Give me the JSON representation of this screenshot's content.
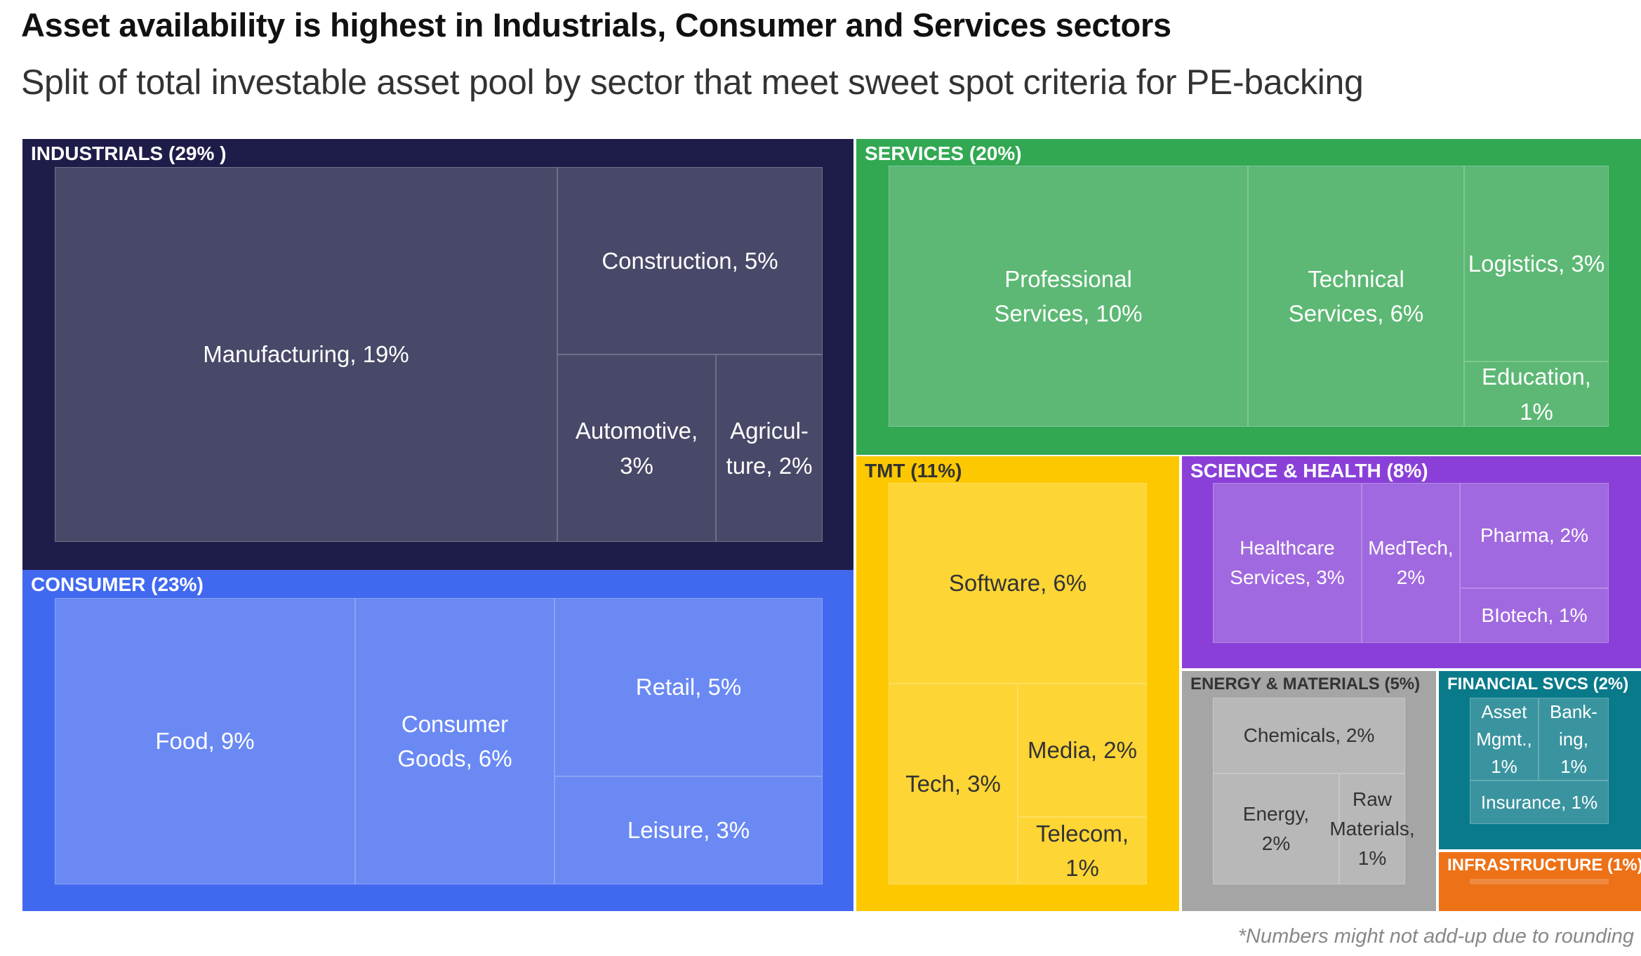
{
  "title": "Asset availability is highest in Industrials, Consumer and Services sectors",
  "subtitle": "Split of total investable asset pool by sector that meet sweet spot criteria for PE-backing",
  "footnote": "*Numbers might not add-up due to rounding",
  "chart_data": {
    "type": "treemap",
    "title": "Asset availability is highest in Industrials, Consumer and Services sectors",
    "subtitle": "Split of total investable asset pool by sector that meet sweet spot criteria for PE-backing",
    "unit": "% of total investable asset pool",
    "sectors": [
      {
        "id": "industrials",
        "label": "INDUSTRIALS (29% )",
        "value": 29,
        "color": "#1e1d49",
        "leaf_color": "#484868",
        "text_color": "#ffffff",
        "children": [
          {
            "id": "manufacturing",
            "label": "Manufacturing, 19%",
            "value": 19
          },
          {
            "id": "construction",
            "label": "Construction, 5%",
            "value": 5
          },
          {
            "id": "automotive",
            "label": "Automotive, 3%",
            "value": 3
          },
          {
            "id": "agriculture",
            "label": "Agricul-ture, 2%",
            "value": 2
          }
        ]
      },
      {
        "id": "consumer",
        "label": "CONSUMER (23%)",
        "value": 23,
        "color": "#4169ef",
        "leaf_color": "#6a89f3",
        "text_color": "#ffffff",
        "children": [
          {
            "id": "food",
            "label": "Food, 9%",
            "value": 9
          },
          {
            "id": "consumer-goods",
            "label": "Consumer Goods, 6%",
            "value": 6
          },
          {
            "id": "retail",
            "label": "Retail, 5%",
            "value": 5
          },
          {
            "id": "leisure",
            "label": "Leisure, 3%",
            "value": 3
          }
        ]
      },
      {
        "id": "services",
        "label": "SERVICES (20%)",
        "value": 20,
        "color": "#32a852",
        "leaf_color": "#5cb874",
        "text_color": "#ffffff",
        "children": [
          {
            "id": "professional-services",
            "label": "Professional Services, 10%",
            "value": 10
          },
          {
            "id": "technical-services",
            "label": "Technical Services, 6%",
            "value": 6
          },
          {
            "id": "logistics",
            "label": "Logistics, 3%",
            "value": 3
          },
          {
            "id": "education",
            "label": "Education, 1%",
            "value": 1
          }
        ]
      },
      {
        "id": "tmt",
        "label": "TMT (11%)",
        "value": 11,
        "color": "#fdc800",
        "leaf_color": "#fdd535",
        "text_color": "#333333",
        "children": [
          {
            "id": "software",
            "label": "Software, 6%",
            "value": 6
          },
          {
            "id": "tech",
            "label": "Tech, 3%",
            "value": 3
          },
          {
            "id": "media",
            "label": "Media, 2%",
            "value": 2
          },
          {
            "id": "telecom",
            "label": "Telecom, 1%",
            "value": 1
          }
        ]
      },
      {
        "id": "science-health",
        "label": "SCIENCE & HEALTH (8%)",
        "value": 8,
        "color": "#8a40d8",
        "leaf_color": "#a169df",
        "text_color": "#ffffff",
        "children": [
          {
            "id": "healthcare-services",
            "label": "Healthcare Services, 3%",
            "value": 3
          },
          {
            "id": "medtech",
            "label": "MedTech, 2%",
            "value": 2
          },
          {
            "id": "pharma",
            "label": "Pharma, 2%",
            "value": 2
          },
          {
            "id": "biotech",
            "label": "BIotech, 1%",
            "value": 1
          }
        ]
      },
      {
        "id": "energy-materials",
        "label": "ENERGY & MATERIALS (5%)",
        "value": 5,
        "color": "#a5a5a5",
        "leaf_color": "#b8b8b8",
        "text_color": "#333333",
        "children": [
          {
            "id": "chemicals",
            "label": "Chemicals, 2%",
            "value": 2
          },
          {
            "id": "energy",
            "label": "Energy, 2%",
            "value": 2
          },
          {
            "id": "raw-materials",
            "label": "Raw Materials, 1%",
            "value": 1
          }
        ]
      },
      {
        "id": "financial-svcs",
        "label": "FINANCIAL SVCS (2%)",
        "value": 2,
        "color": "#097a8a",
        "leaf_color": "#3a949f",
        "text_color": "#ffffff",
        "children": [
          {
            "id": "asset-mgmt",
            "label": "Asset Mgmt., 1%",
            "value": 1
          },
          {
            "id": "banking",
            "label": "Bank-ing, 1%",
            "value": 1
          },
          {
            "id": "insurance",
            "label": "Insurance, 1%",
            "value": 1
          }
        ]
      },
      {
        "id": "infrastructure",
        "label": "INFRASTRUCTURE (1%)",
        "value": 1,
        "color": "#ed7117",
        "leaf_color": "#f08a40",
        "text_color": "#ffffff",
        "children": []
      }
    ]
  }
}
